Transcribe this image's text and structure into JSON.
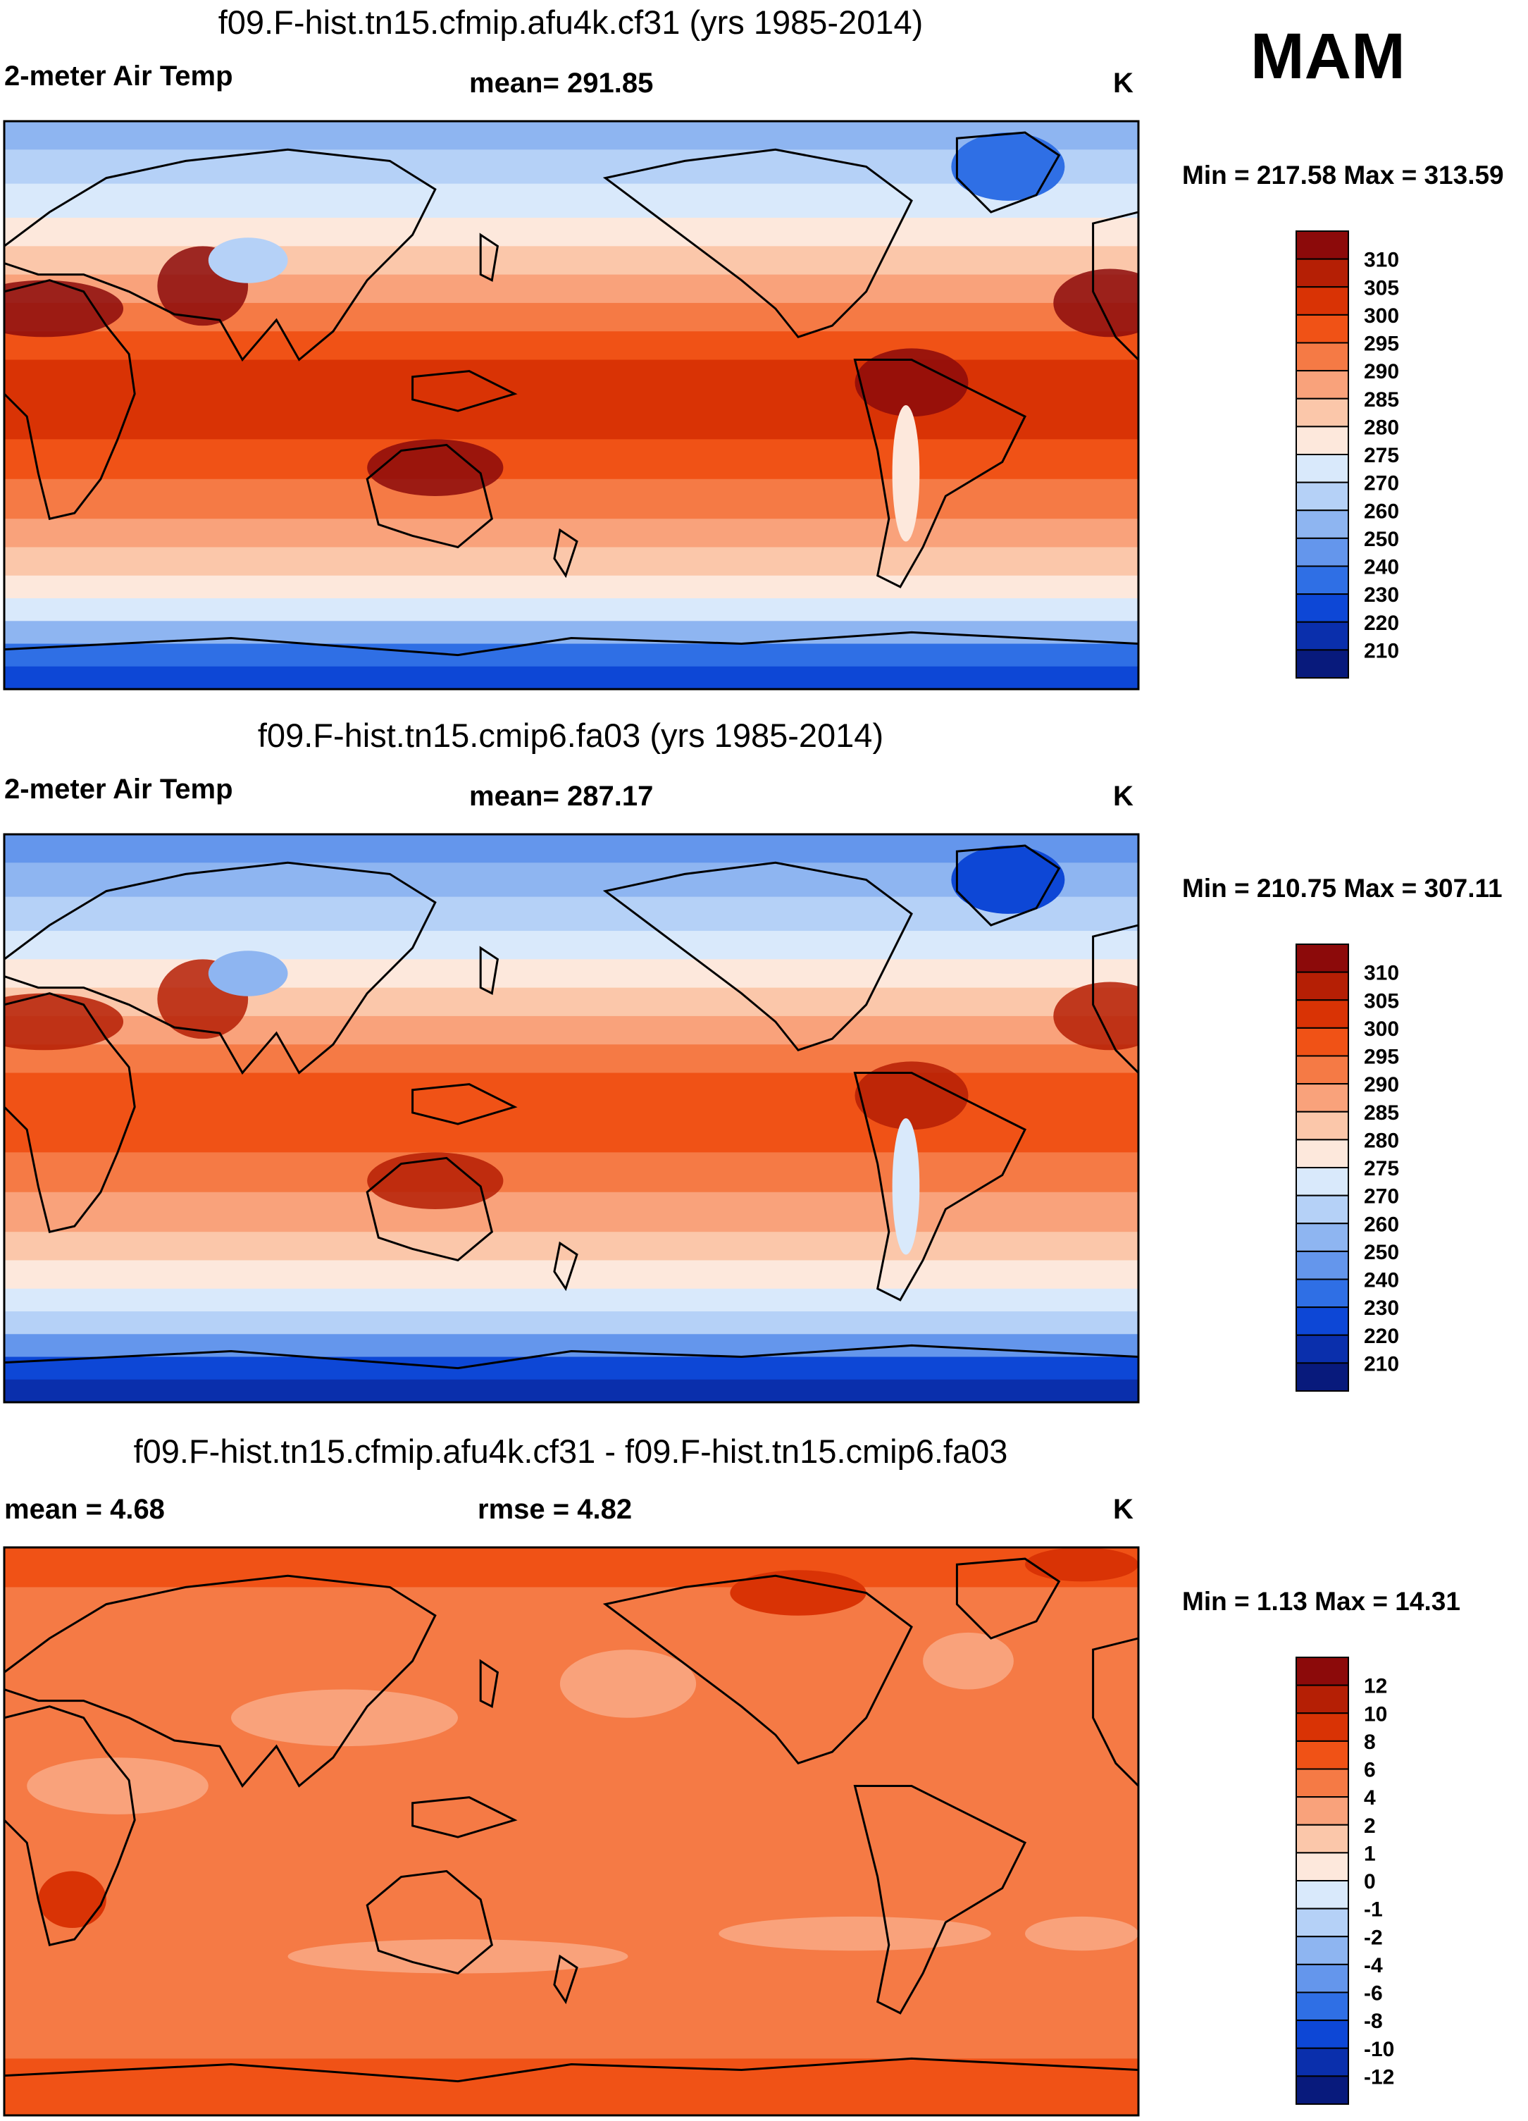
{
  "season": "MAM",
  "panels": [
    {
      "title": "f09.F-hist.tn15.cfmip.afu4k.cf31 (yrs 1985-2014)",
      "left_label": "2-meter Air Temp",
      "center_label": "mean= 291.85",
      "units": "K",
      "minmax": "Min = 217.58 Max = 313.59",
      "levels": [
        "310",
        "305",
        "300",
        "295",
        "290",
        "285",
        "280",
        "275",
        "270",
        "260",
        "250",
        "240",
        "230",
        "220",
        "210"
      ],
      "colors": [
        "#8c0a0a",
        "#b51f05",
        "#d93305",
        "#f05216",
        "#f57a45",
        "#f9a27b",
        "#fbc7aa",
        "#fde8dc",
        "#d9e9fb",
        "#b5d1f7",
        "#8eb5f1",
        "#6496ec",
        "#2f6fe5",
        "#0d47d6",
        "#0a2fac",
        "#081a7c"
      ],
      "mean_value": 291.85
    },
    {
      "title": "f09.F-hist.tn15.cmip6.fa03 (yrs 1985-2014)",
      "left_label": "2-meter Air Temp",
      "center_label": "mean= 287.17",
      "units": "K",
      "minmax": "Min = 210.75 Max = 307.11",
      "levels": [
        "310",
        "305",
        "300",
        "295",
        "290",
        "285",
        "280",
        "275",
        "270",
        "260",
        "250",
        "240",
        "230",
        "220",
        "210"
      ],
      "colors": [
        "#8c0a0a",
        "#b51f05",
        "#d93305",
        "#f05216",
        "#f57a45",
        "#f9a27b",
        "#fbc7aa",
        "#fde8dc",
        "#d9e9fb",
        "#b5d1f7",
        "#8eb5f1",
        "#6496ec",
        "#2f6fe5",
        "#0d47d6",
        "#0a2fac",
        "#081a7c"
      ],
      "mean_value": 287.17
    },
    {
      "title": "f09.F-hist.tn15.cfmip.afu4k.cf31 - f09.F-hist.tn15.cmip6.fa03",
      "left_label": "mean =   4.68",
      "center_label": "rmse =   4.82",
      "units": "K",
      "minmax": "Min =   1.13 Max =  14.31",
      "levels": [
        "12",
        "10",
        "8",
        "6",
        "4",
        "2",
        "1",
        "0",
        "-1",
        "-2",
        "-4",
        "-6",
        "-8",
        "-10",
        "-12"
      ],
      "colors": [
        "#8c0a0a",
        "#b51f05",
        "#d93305",
        "#f05216",
        "#f57a45",
        "#f9a27b",
        "#fbc7aa",
        "#fde8dc",
        "#d9e9fb",
        "#b5d1f7",
        "#8eb5f1",
        "#6496ec",
        "#2f6fe5",
        "#0d47d6",
        "#0a2fac",
        "#081a7c"
      ],
      "mean_value": 4.68
    }
  ]
}
